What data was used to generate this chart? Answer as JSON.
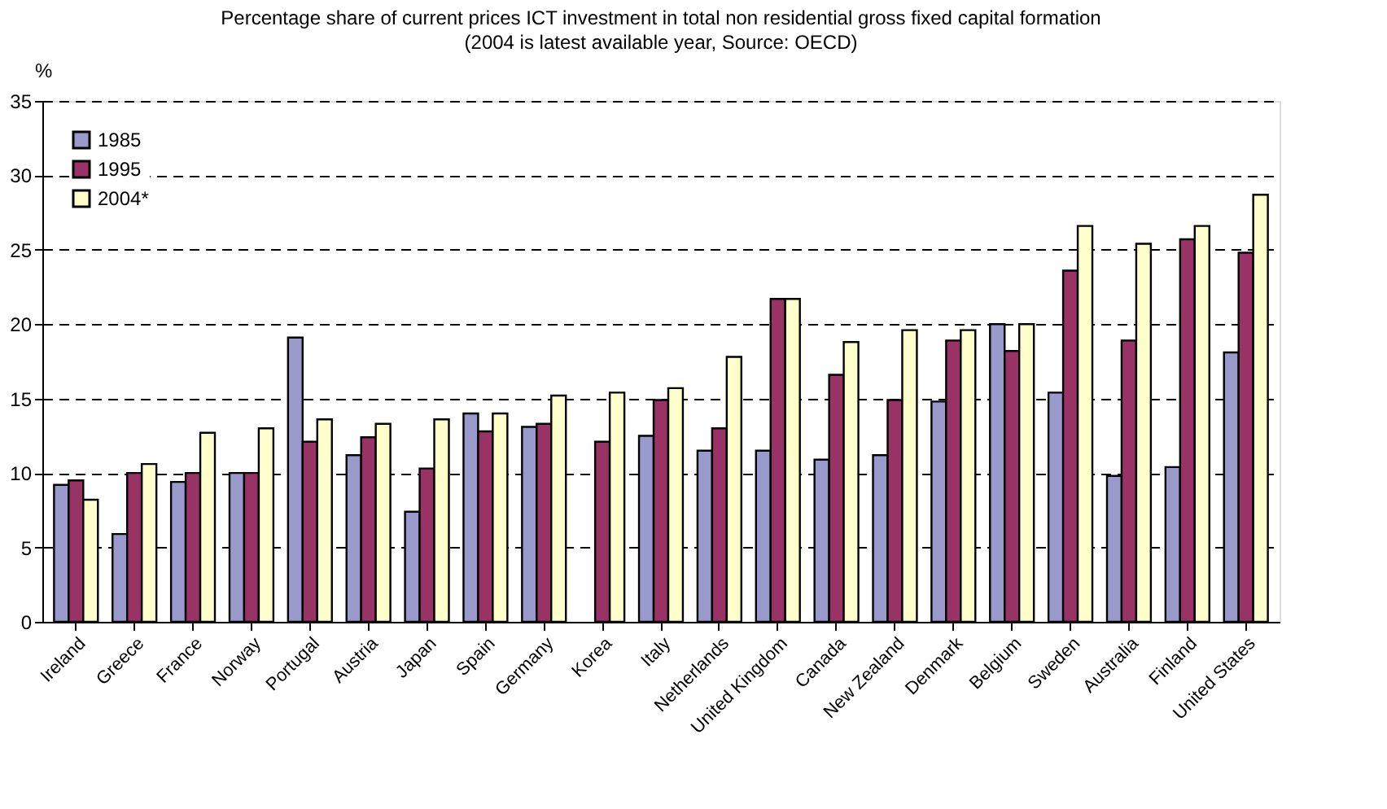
{
  "chart_data": {
    "type": "bar",
    "title": "Percentage share of current prices ICT investment in total non residential gross fixed capital formation",
    "subtitle": "(2004 is latest available year, Source: OECD)",
    "ylabel": "%",
    "categories": [
      "Ireland",
      "Greece",
      "France",
      "Norway",
      "Portugal",
      "Austria",
      "Japan",
      "Spain",
      "Germany",
      "Korea",
      "Italy",
      "Netherlands",
      "United Kingdom",
      "Canada",
      "New Zealand",
      "Denmark",
      "Belgium",
      "Sweden",
      "Australia",
      "Finland",
      "United States"
    ],
    "series": [
      {
        "name": "1985",
        "color": "#9999cc",
        "values": [
          9.2,
          5.9,
          9.4,
          10,
          19.1,
          11.2,
          7.4,
          14,
          13.1,
          null,
          12.5,
          11.5,
          11.5,
          10.9,
          11.2,
          14.8,
          20,
          15.4,
          9.8,
          10.4,
          18.1
        ]
      },
      {
        "name": "1995",
        "color": "#993366",
        "values": [
          9.5,
          10,
          10,
          10,
          12.1,
          12.4,
          10.3,
          12.8,
          13.3,
          12.1,
          14.9,
          13,
          21.7,
          16.6,
          14.9,
          18.9,
          18.2,
          23.6,
          18.9,
          25.7,
          24.8
        ]
      },
      {
        "name": "2004*",
        "color": "#ffffcc",
        "values": [
          8.2,
          10.6,
          12.7,
          13,
          13.6,
          13.3,
          13.6,
          14,
          15.2,
          15.4,
          15.7,
          17.8,
          21.7,
          18.8,
          19.6,
          19.6,
          20,
          26.6,
          25.4,
          26.6,
          28.7
        ]
      }
    ],
    "ylim": [
      0,
      35
    ],
    "yticks": [
      0,
      5,
      10,
      15,
      20,
      25,
      30,
      35
    ],
    "grid": "y",
    "legend": "top left"
  }
}
